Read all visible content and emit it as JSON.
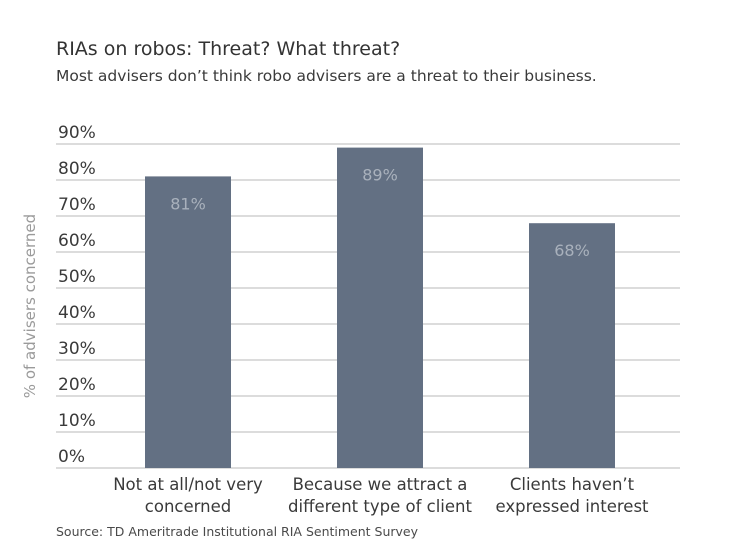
{
  "title": "RIAs on robos: Threat? What threat?",
  "subtitle": "Most advisers don’t think robo advisers are a threat to their business.",
  "source": "Source: TD Ameritrade Institutional RIA Sentiment Survey",
  "colors": {
    "bar": "#637083",
    "bar_label": "#a9b1bc",
    "grid": "#b9b9b9",
    "axis_text": "#3a3a3a",
    "ylabel": "#9a9a9a"
  },
  "chart_data": {
    "type": "bar",
    "categories": [
      [
        "Not at all/not very",
        "concerned"
      ],
      [
        "Because we attract a",
        "different type of client"
      ],
      [
        "Clients haven’t",
        "expressed interest"
      ]
    ],
    "values": [
      81,
      89,
      68
    ],
    "data_labels": [
      "81%",
      "89%",
      "68%"
    ],
    "ylabel": "% of advisers concerned",
    "ylim": [
      0,
      90
    ],
    "yticks": [
      0,
      10,
      20,
      30,
      40,
      50,
      60,
      70,
      80,
      90
    ],
    "ytick_labels": [
      "0%",
      "10%",
      "20%",
      "30%",
      "40%",
      "50%",
      "60%",
      "70%",
      "80%",
      "90%"
    ],
    "grid": true,
    "legend": "none"
  }
}
